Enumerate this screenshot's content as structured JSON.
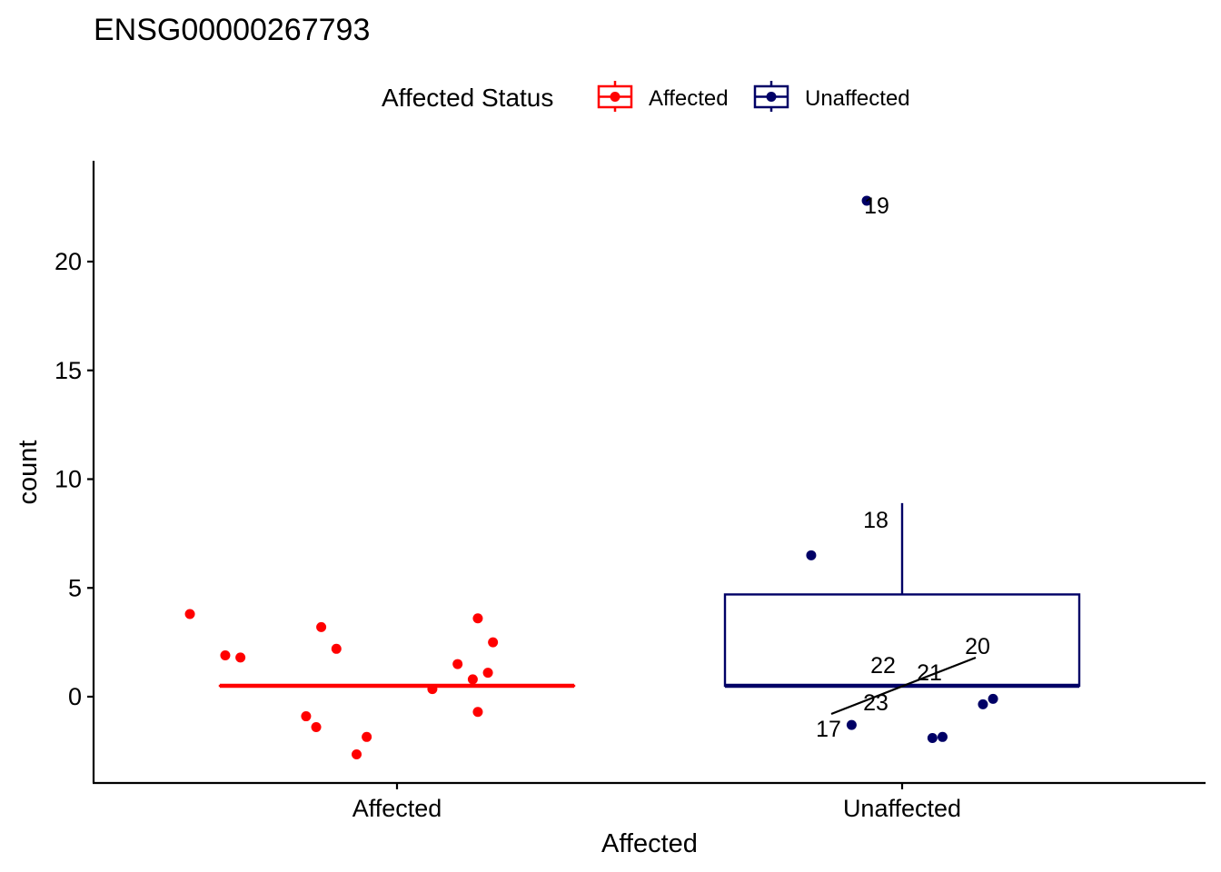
{
  "chart_data": {
    "type": "box",
    "title": "ENSG00000267793",
    "xlabel": "Affected",
    "ylabel": "count",
    "ylim": [
      -4,
      24.5
    ],
    "yticks": [
      0,
      5,
      10,
      15,
      20
    ],
    "categories": [
      "Affected",
      "Unaffected"
    ],
    "legend": {
      "title": "Affected Status",
      "position": "top",
      "entries": [
        {
          "label": "Affected",
          "color": "#FF0000"
        },
        {
          "label": "Unaffected",
          "color": "#000066"
        }
      ]
    },
    "boxes": [
      {
        "category": "Affected",
        "color": "#FF0000",
        "min": 0.5,
        "q1": 0.5,
        "median": 0.5,
        "q3": 0.5,
        "max": 0.5
      },
      {
        "category": "Unaffected",
        "color": "#000066",
        "min": 0.5,
        "q1": 0.5,
        "median": 0.5,
        "q3": 4.7,
        "max": 8.9
      }
    ],
    "points": [
      {
        "category": "Affected",
        "jitter": -0.41,
        "y": 3.8
      },
      {
        "category": "Affected",
        "jitter": -0.15,
        "y": 3.2
      },
      {
        "category": "Affected",
        "jitter": 0.16,
        "y": 3.6
      },
      {
        "category": "Affected",
        "jitter": 0.19,
        "y": 2.5
      },
      {
        "category": "Affected",
        "jitter": -0.12,
        "y": 2.2
      },
      {
        "category": "Affected",
        "jitter": -0.34,
        "y": 1.9
      },
      {
        "category": "Affected",
        "jitter": -0.31,
        "y": 1.8
      },
      {
        "category": "Affected",
        "jitter": 0.12,
        "y": 1.5
      },
      {
        "category": "Affected",
        "jitter": 0.18,
        "y": 1.1
      },
      {
        "category": "Affected",
        "jitter": 0.15,
        "y": 0.8
      },
      {
        "category": "Affected",
        "jitter": 0.07,
        "y": 0.35
      },
      {
        "category": "Affected",
        "jitter": -0.18,
        "y": -0.9
      },
      {
        "category": "Affected",
        "jitter": -0.16,
        "y": -1.4
      },
      {
        "category": "Affected",
        "jitter": 0.16,
        "y": -0.7
      },
      {
        "category": "Affected",
        "jitter": -0.06,
        "y": -1.85
      },
      {
        "category": "Affected",
        "jitter": -0.08,
        "y": -2.65
      },
      {
        "category": "Unaffected",
        "jitter": -0.07,
        "y": 22.8,
        "label": "19"
      },
      {
        "category": "Unaffected",
        "jitter": -0.18,
        "y": 6.5,
        "label": "18"
      },
      {
        "category": "Unaffected",
        "jitter": -0.1,
        "y": -1.3,
        "label": "17"
      },
      {
        "category": "Unaffected",
        "jitter": 0.06,
        "y": -1.9
      },
      {
        "category": "Unaffected",
        "jitter": 0.08,
        "y": -1.85
      },
      {
        "category": "Unaffected",
        "jitter": 0.16,
        "y": -0.35
      },
      {
        "category": "Unaffected",
        "jitter": 0.18,
        "y": -0.1
      }
    ],
    "point_labels": [
      "19",
      "18",
      "20",
      "22",
      "21",
      "23",
      "17"
    ]
  }
}
